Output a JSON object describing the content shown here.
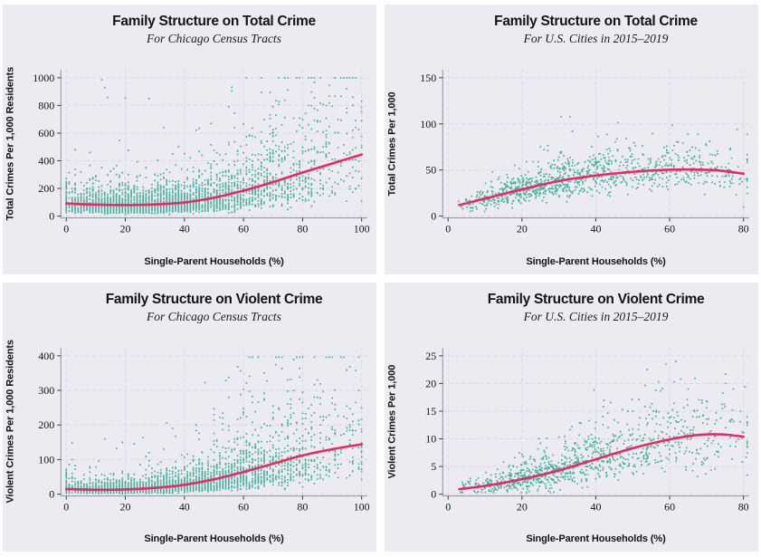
{
  "page": {
    "background": "#fdfdfe"
  },
  "colors": {
    "panel_bg": "#ecebf1",
    "grid": "#d8d5df",
    "axis": "#8a93a3",
    "tick_mark": "#3a3a42",
    "text": "#141414",
    "point": "#1da28b",
    "trend": "#ee2762"
  },
  "chart_data": [
    {
      "type": "scatter",
      "title": "Family Structure on Total Crime",
      "subtitle": "For Chicago Census Tracts",
      "xlabel": "Single-Parent Households (%)",
      "ylabel": "Total Crimes Per 1,000 Residents",
      "xlim": [
        0,
        100
      ],
      "ylim": [
        0,
        1000
      ],
      "xticks": [
        0,
        20,
        40,
        60,
        80,
        100
      ],
      "yticks": [
        0,
        200,
        400,
        600,
        800,
        1000
      ],
      "grid": true,
      "legend": "none",
      "trend": [
        [
          0,
          92
        ],
        [
          10,
          83
        ],
        [
          20,
          80
        ],
        [
          30,
          84
        ],
        [
          40,
          99
        ],
        [
          50,
          133
        ],
        [
          60,
          184
        ],
        [
          70,
          246
        ],
        [
          80,
          315
        ],
        [
          90,
          380
        ],
        [
          100,
          445
        ]
      ],
      "scatter": {
        "n": 3000,
        "seed": 11,
        "x_tri": [
          -8,
          17,
          106
        ],
        "x_clip": [
          0,
          100
        ],
        "x_round": 1,
        "sigma_mult": 0.6,
        "sigma_add": 0,
        "boost_p": 0.012,
        "boost": 1.6,
        "y_clip": [
          5,
          1000
        ]
      },
      "outliers": [
        [
          13,
          930
        ],
        [
          12,
          985
        ],
        [
          14,
          858
        ],
        [
          20,
          852
        ],
        [
          56,
          905
        ],
        [
          55,
          790
        ],
        [
          57,
          745
        ],
        [
          33,
          640
        ],
        [
          80,
          700
        ],
        [
          79,
          655
        ],
        [
          95,
          748
        ],
        [
          70,
          790
        ],
        [
          71,
          730
        ],
        [
          62,
          580
        ],
        [
          44,
          620
        ],
        [
          8,
          460
        ],
        [
          5,
          320
        ],
        [
          100,
          495
        ],
        [
          98,
          640
        ]
      ]
    },
    {
      "type": "scatter",
      "title": "Family Structure on Total Crime",
      "subtitle": "For U.S. Cities in 2015–2019",
      "xlabel": "Single-Parent Households (%)",
      "ylabel": "Total Crimes Per 1,000",
      "xlim": [
        0,
        80
      ],
      "ylim": [
        0,
        150
      ],
      "xticks": [
        0,
        20,
        40,
        60,
        80
      ],
      "yticks": [
        0,
        50,
        100,
        150
      ],
      "grid": true,
      "legend": "none",
      "trend": [
        [
          3,
          12
        ],
        [
          10,
          19
        ],
        [
          20,
          29
        ],
        [
          30,
          38
        ],
        [
          40,
          44
        ],
        [
          50,
          48
        ],
        [
          58,
          50
        ],
        [
          66,
          50.5
        ],
        [
          73,
          49.5
        ],
        [
          80,
          46
        ]
      ],
      "scatter": {
        "n": 1000,
        "seed": 23,
        "x_tri": [
          2,
          19,
          90
        ],
        "x_clip": [
          2,
          81
        ],
        "x_round": 0,
        "sigma_mult": 0.27,
        "sigma_add": 3.2,
        "boost_p": 0.008,
        "boost": 0.8,
        "y_clip": [
          2.5,
          148
        ]
      },
      "outliers": [
        [
          33,
          108
        ],
        [
          25,
          75
        ],
        [
          27,
          71
        ],
        [
          30,
          64
        ],
        [
          57,
          62
        ],
        [
          60,
          63
        ],
        [
          23,
          59
        ],
        [
          78,
          23
        ],
        [
          80,
          10
        ],
        [
          6,
          5
        ],
        [
          4,
          8
        ],
        [
          12,
          48
        ],
        [
          18,
          55
        ]
      ]
    },
    {
      "type": "scatter",
      "title": "Family Structure on Violent Crime",
      "subtitle": "For Chicago Census Tracts",
      "xlabel": "Single-Parent Households (%)",
      "ylabel": "Violent Crimes Per 1,000 Residents",
      "xlim": [
        0,
        100
      ],
      "ylim": [
        0,
        400
      ],
      "xticks": [
        0,
        20,
        40,
        60,
        80,
        100
      ],
      "yticks": [
        0,
        100,
        200,
        300,
        400
      ],
      "grid": true,
      "legend": "none",
      "trend": [
        [
          0,
          15
        ],
        [
          10,
          12.5
        ],
        [
          20,
          13.5
        ],
        [
          30,
          18
        ],
        [
          40,
          27
        ],
        [
          50,
          43
        ],
        [
          60,
          64
        ],
        [
          70,
          88
        ],
        [
          80,
          112
        ],
        [
          90,
          130
        ],
        [
          100,
          144
        ]
      ],
      "scatter": {
        "n": 3000,
        "seed": 37,
        "x_tri": [
          -8,
          17,
          106
        ],
        "x_clip": [
          0,
          100
        ],
        "x_round": 1,
        "sigma_mult": 0.68,
        "sigma_add": 0,
        "boost_p": 0.012,
        "boost": 1.5,
        "y_clip": [
          1.5,
          396
        ]
      },
      "outliers": [
        [
          95,
          358
        ],
        [
          85,
          330
        ],
        [
          60,
          303
        ],
        [
          75,
          298
        ],
        [
          99,
          300
        ],
        [
          55,
          280
        ],
        [
          90,
          278
        ],
        [
          63,
          265
        ],
        [
          13,
          160
        ],
        [
          19,
          150
        ],
        [
          2,
          100
        ],
        [
          2,
          60
        ],
        [
          36,
          190
        ],
        [
          44,
          200
        ],
        [
          50,
          230
        ],
        [
          70,
          255
        ],
        [
          80,
          265
        ],
        [
          28,
          120
        ],
        [
          33,
          130
        ]
      ]
    },
    {
      "type": "scatter",
      "title": "Family Structure on Violent Crime",
      "subtitle": "For U.S. Cities in 2015–2019",
      "xlabel": "Single-Parent Households (%)",
      "ylabel": "Violent Crimes Per 1,000",
      "xlim": [
        0,
        80
      ],
      "ylim": [
        0,
        25
      ],
      "xticks": [
        0,
        20,
        40,
        60,
        80
      ],
      "yticks": [
        0,
        5,
        10,
        15,
        20,
        25
      ],
      "grid": true,
      "legend": "none",
      "trend": [
        [
          3,
          0.9
        ],
        [
          10,
          1.5
        ],
        [
          20,
          2.7
        ],
        [
          30,
          4.3
        ],
        [
          40,
          6.3
        ],
        [
          50,
          8.3
        ],
        [
          60,
          9.9
        ],
        [
          68,
          10.7
        ],
        [
          74,
          10.8
        ],
        [
          80,
          10.4
        ]
      ],
      "scatter": {
        "n": 1000,
        "seed": 53,
        "x_tri": [
          2,
          19,
          90
        ],
        "x_clip": [
          2,
          81
        ],
        "x_round": 0,
        "sigma_mult": 0.38,
        "sigma_add": 0.75,
        "boost_p": 0.008,
        "boost": 0.8,
        "y_clip": [
          0.3,
          24
        ]
      },
      "outliers": [
        [
          57,
          20.3
        ],
        [
          63,
          20.8
        ],
        [
          65,
          19
        ],
        [
          40,
          13
        ],
        [
          45,
          13.4
        ],
        [
          70,
          16.8
        ],
        [
          75,
          15.8
        ],
        [
          36,
          12.8
        ],
        [
          50,
          15
        ],
        [
          30,
          10.3
        ],
        [
          25,
          9.2
        ],
        [
          62,
          13
        ],
        [
          68,
          14
        ],
        [
          78,
          9.5
        ],
        [
          20,
          7.2
        ],
        [
          15,
          5.8
        ]
      ]
    }
  ]
}
